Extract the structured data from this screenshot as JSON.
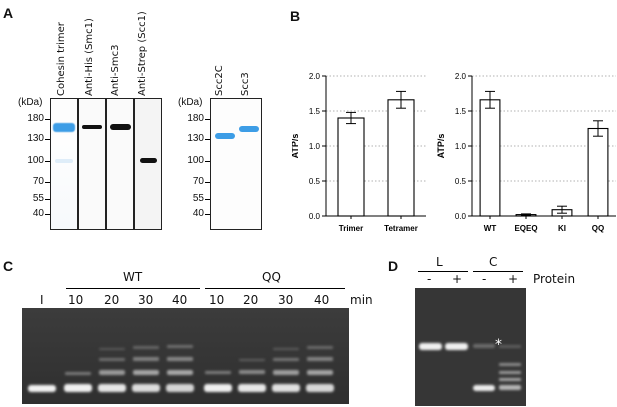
{
  "panels": {
    "a": "A",
    "b": "B",
    "c": "C",
    "d": "D"
  },
  "panel_a": {
    "kda_label": "(kDa)",
    "markers": [
      "180",
      "130",
      "100",
      "70",
      "55",
      "40"
    ],
    "lanes": [
      "Cohesin trimer",
      "Anti-His (Smc1)",
      "Anti-Smc3",
      "Anti-Strep (Scc1)"
    ],
    "lanes2": [
      "Scc2C",
      "Scc3"
    ],
    "kda_label2": "(kDa)",
    "markers2": [
      "180",
      "130",
      "100",
      "70",
      "55",
      "40"
    ]
  },
  "chart_data": [
    {
      "type": "bar",
      "categories": [
        "Trimer",
        "Tetramer"
      ],
      "values": [
        1.4,
        1.66
      ],
      "errors": [
        0.08,
        0.12
      ],
      "ylabel": "ATP/s",
      "ylim": [
        0,
        2.0
      ],
      "yticks": [
        "0.0",
        "0.5",
        "1.0",
        "1.5",
        "2.0"
      ]
    },
    {
      "type": "bar",
      "categories": [
        "WT",
        "EQEQ",
        "KI",
        "QQ"
      ],
      "values": [
        1.66,
        0.02,
        0.09,
        1.25
      ],
      "errors": [
        0.12,
        0.01,
        0.05,
        0.11
      ],
      "ylabel": "ATP/s",
      "ylim": [
        0,
        2.0
      ],
      "yticks": [
        "0.0",
        "0.5",
        "1.0",
        "1.5",
        "2.0"
      ]
    }
  ],
  "panel_c": {
    "group_wt": "WT",
    "group_qq": "QQ",
    "input_lane": "I",
    "times": [
      "10",
      "20",
      "30",
      "40",
      "10",
      "20",
      "30",
      "40"
    ],
    "unit": "min"
  },
  "panel_d": {
    "group_l": "L",
    "group_c": "C",
    "signs": [
      "-",
      "+",
      "-",
      "+"
    ],
    "protein_label": "Protein",
    "asterisk": "*"
  },
  "colors": {
    "blot_band": "#3d9de6",
    "blot_faint": "#9cc8ee",
    "gel_bg": "#3a3a3a",
    "gel_band": "#f0f0f0"
  }
}
